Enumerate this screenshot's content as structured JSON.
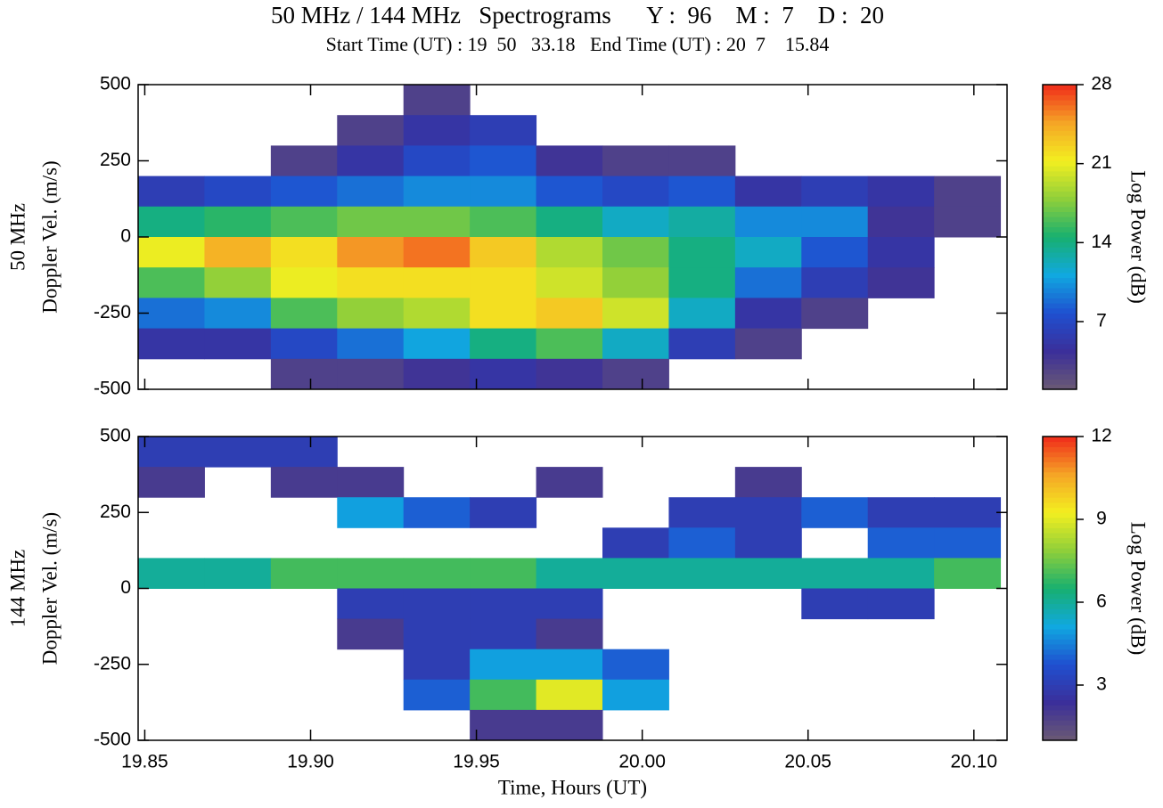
{
  "title": "50 MHz / 144 MHz   Spectrograms      Y :  96    M :  7    D :  20",
  "subtitle": "Start Time (UT) : 19  50   33.18   End Time (UT) : 20  7    15.84",
  "colormap": [
    "#6b5a73",
    "#3b2f9a",
    "#1f4fd0",
    "#10a8e0",
    "#17b070",
    "#8fcf3a",
    "#f3ef20",
    "#f5a526",
    "#f02b1a"
  ],
  "chart_data": [
    {
      "type": "heatmap",
      "panel_label": "50 MHz",
      "ylabel": "Doppler Vel. (m/s)",
      "colorbar_label": "Log Power (dB)",
      "xlim": [
        19.848,
        20.11
      ],
      "ylim": [
        -500,
        500
      ],
      "yticks": [
        500,
        250,
        0,
        -250,
        -500
      ],
      "clim": [
        1,
        28
      ],
      "cticks": [
        7,
        14,
        21,
        28
      ],
      "x_bins": [
        19.848,
        19.868,
        19.888,
        19.908,
        19.928,
        19.948,
        19.968,
        19.988,
        20.008,
        20.028,
        20.048,
        20.068,
        20.088,
        20.108
      ],
      "y_bins": [
        500,
        400,
        300,
        200,
        100,
        0,
        -100,
        -200,
        -300,
        -400,
        -500
      ],
      "z": [
        [
          null,
          null,
          null,
          null,
          3,
          null,
          null,
          null,
          null,
          null,
          null,
          null,
          null
        ],
        [
          null,
          null,
          null,
          3,
          5,
          6,
          null,
          null,
          null,
          null,
          null,
          null,
          null
        ],
        [
          null,
          null,
          3,
          5,
          7,
          8,
          4,
          3,
          3,
          null,
          null,
          null,
          null
        ],
        [
          6,
          7,
          8,
          9,
          10,
          10,
          8,
          7,
          8,
          5,
          6,
          5,
          3
        ],
        [
          14,
          15,
          16,
          17,
          17,
          16,
          14,
          12,
          13,
          10,
          10,
          4,
          3
        ],
        [
          21,
          24,
          22,
          25,
          26,
          23,
          19,
          17,
          14,
          12,
          8,
          5,
          null
        ],
        [
          16,
          18,
          21,
          22,
          22,
          22,
          20,
          18,
          14,
          9,
          6,
          4,
          null
        ],
        [
          9,
          10,
          16,
          18,
          19,
          22,
          23,
          20,
          12,
          5,
          3,
          null,
          null
        ],
        [
          5,
          5,
          7,
          9,
          11,
          14,
          16,
          12,
          6,
          3,
          null,
          null,
          null
        ],
        [
          null,
          null,
          3,
          3,
          4,
          5,
          4,
          3,
          null,
          null,
          null,
          null,
          null
        ]
      ]
    },
    {
      "type": "heatmap",
      "panel_label": "144 MHz",
      "ylabel": "Doppler Vel. (m/s)",
      "colorbar_label": "Log Power (dB)",
      "xlabel": "Time, Hours (UT)",
      "xlim": [
        19.848,
        20.11
      ],
      "ylim": [
        -500,
        500
      ],
      "yticks": [
        500,
        250,
        0,
        -250,
        -500
      ],
      "xticks": [
        19.85,
        {
          "value": 19.9,
          "label": "19.90"
        },
        19.95,
        {
          "value": 20,
          "label": "20.00"
        },
        20.05,
        {
          "value": 20.1,
          "label": "20.10"
        }
      ],
      "clim": [
        1,
        12
      ],
      "cticks": [
        3,
        6,
        9,
        12
      ],
      "x_bins": [
        19.848,
        19.868,
        19.888,
        19.908,
        19.928,
        19.948,
        19.968,
        19.988,
        20.008,
        20.028,
        20.048,
        20.068,
        20.088,
        20.108
      ],
      "y_bins": [
        500,
        400,
        300,
        200,
        100,
        0,
        -100,
        -200,
        -300,
        -400,
        -500
      ],
      "z": [
        [
          3,
          3,
          3,
          null,
          null,
          null,
          null,
          null,
          null,
          null,
          null,
          null,
          null
        ],
        [
          2,
          null,
          2,
          2,
          null,
          null,
          2,
          null,
          null,
          2,
          null,
          null,
          null
        ],
        [
          null,
          null,
          null,
          5,
          4,
          3,
          null,
          null,
          3,
          3,
          4,
          3,
          3
        ],
        [
          null,
          null,
          null,
          null,
          null,
          null,
          null,
          3,
          4,
          3,
          null,
          4,
          4
        ],
        [
          6,
          6,
          7,
          7,
          7,
          7,
          6,
          6,
          6,
          6,
          6,
          6,
          7
        ],
        [
          null,
          null,
          null,
          3,
          3,
          3,
          3,
          null,
          null,
          null,
          3,
          3,
          null
        ],
        [
          null,
          null,
          null,
          2,
          3,
          3,
          2,
          null,
          null,
          null,
          null,
          null,
          null
        ],
        [
          null,
          null,
          null,
          null,
          3,
          5,
          5,
          4,
          null,
          null,
          null,
          null,
          null
        ],
        [
          null,
          null,
          null,
          null,
          4,
          7,
          9,
          5,
          null,
          null,
          null,
          null,
          null
        ],
        [
          null,
          null,
          null,
          null,
          null,
          2,
          2,
          null,
          null,
          null,
          null,
          null,
          null
        ]
      ]
    }
  ]
}
